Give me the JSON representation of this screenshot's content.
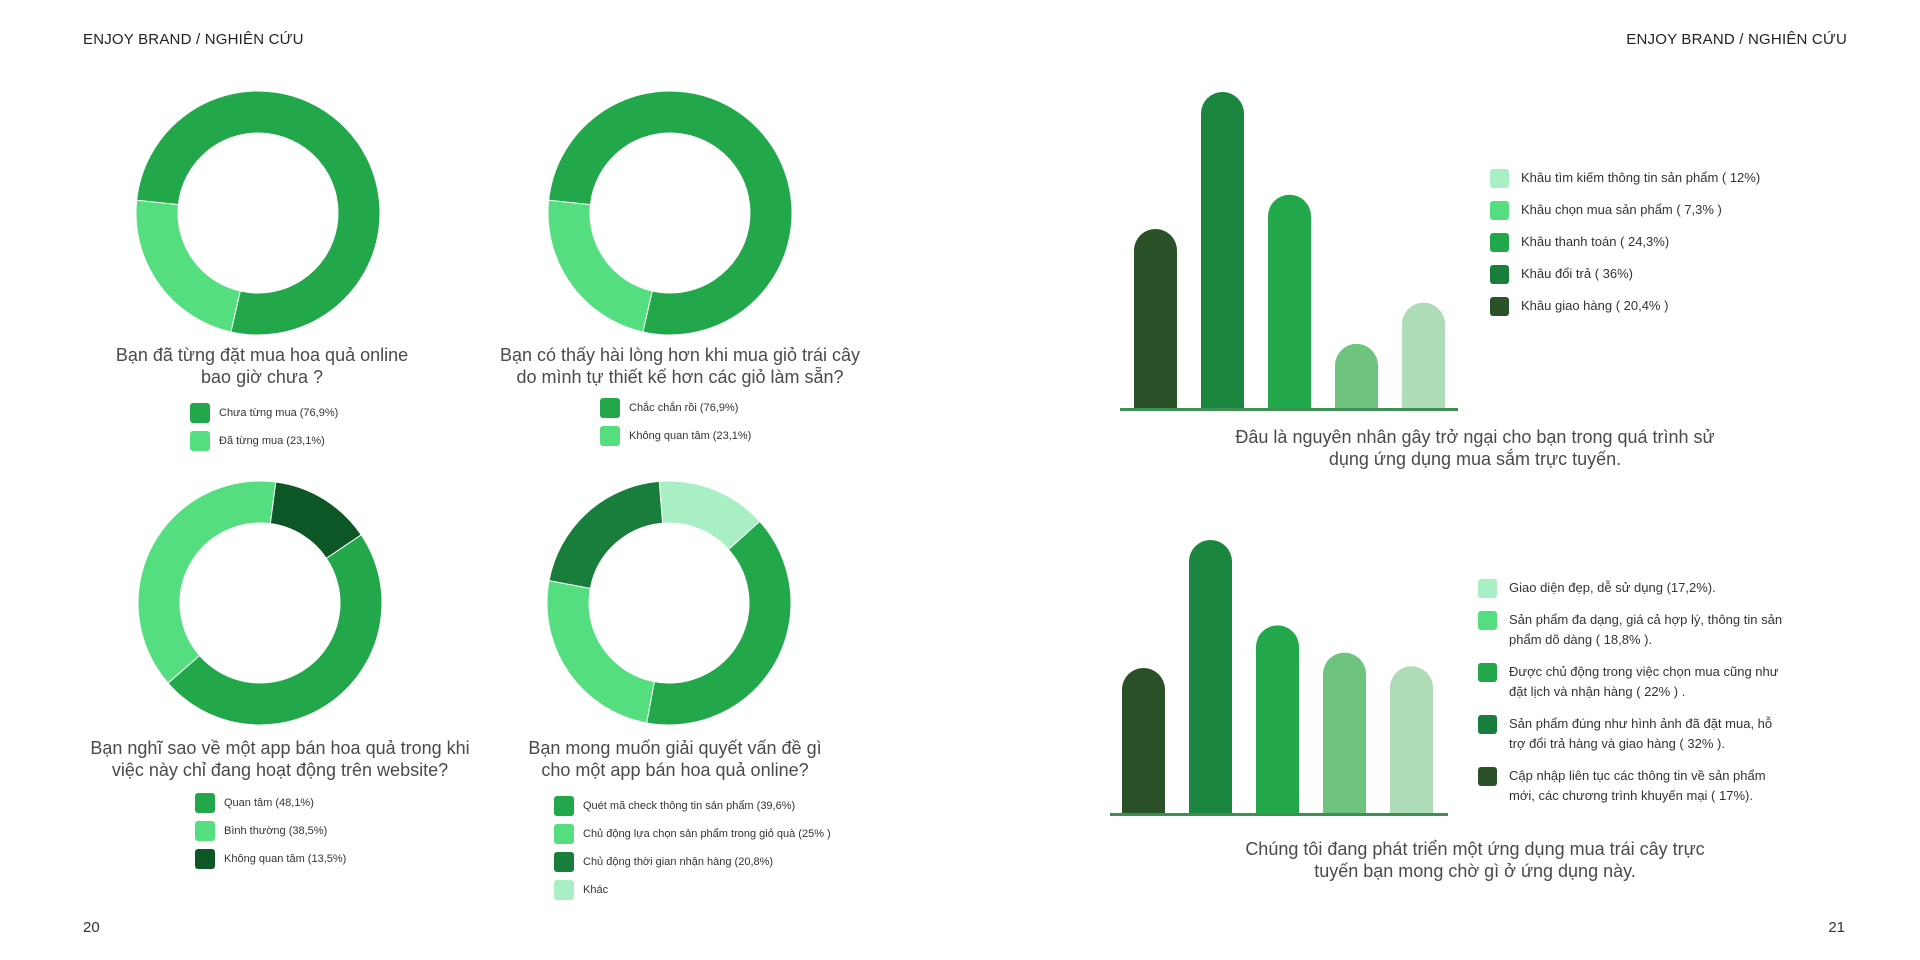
{
  "header": {
    "left_title": "ENJOY BRAND / NGHIÊN CỨU",
    "right_title": "ENJOY BRAND / NGHIÊN CỨU"
  },
  "pages": {
    "left": "20",
    "right": "21"
  },
  "chart_data": [
    {
      "type": "pie",
      "title": "Bạn đã từng đặt mua hoa quả online bao giờ chưa ?",
      "slices": [
        {
          "label": "Chưa từng mua (76,9%)",
          "value": 76.9,
          "color": "#22a84b"
        },
        {
          "label": "Đã từng mua (23,1%)",
          "value": 23.1,
          "color": "#55de80"
        }
      ]
    },
    {
      "type": "pie",
      "title": "Bạn có thấy hài lòng hơn khi mua giỏ trái cây do mình tự thiết kế hơn các giỏ làm sẵn?",
      "slices": [
        {
          "label": "Chắc chắn rồi (76,9%)",
          "value": 76.9,
          "color": "#22a84b"
        },
        {
          "label": "Không quan tâm (23,1%)",
          "value": 23.1,
          "color": "#55de80"
        }
      ]
    },
    {
      "type": "pie",
      "title": "Bạn nghĩ sao về một app bán hoa quả trong khi việc này chỉ đang hoạt động trên website?",
      "slices": [
        {
          "label": "Quan tâm (48,1%)",
          "value": 48.1,
          "color": "#22a84b"
        },
        {
          "label": "Bình thường (38,5%)",
          "value": 38.5,
          "color": "#55de80"
        },
        {
          "label": "Không quan tâm (13,5%)",
          "value": 13.5,
          "color": "#0d5626"
        }
      ]
    },
    {
      "type": "pie",
      "title": "Bạn mong muốn giải quyết vấn đề gì cho một app bán hoa quả online?",
      "slices": [
        {
          "label": "Quét mã check thông tin sản phẩm  (39,6%)",
          "value": 39.6,
          "color": "#22a84b"
        },
        {
          "label": "Chủ động lựa chọn sản phẩm trong giỏ quà (25% )",
          "value": 25,
          "color": "#55de80"
        },
        {
          "label": "Chủ động thời gian nhận hàng (20,8%)",
          "value": 20.8,
          "color": "#197e3b"
        },
        {
          "label": "Khác",
          "value": 14.6,
          "color": "#a8efc3"
        }
      ]
    },
    {
      "type": "bar",
      "title": "Đâu là nguyên nhân gây trở ngại cho bạn trong quá trình sử dụng ứng dụng mua sắm trực tuyến.",
      "categories": [
        "Khâu giao hàng ( 20,4% )",
        "Khâu đổi trả ( 36%)",
        "Khâu thanh toán ( 24,3%)",
        "Khâu chọn mua sản phẩm ( 7,3% )",
        "Khâu tìm kiếm thông tin sản phẩm ( 12%)"
      ],
      "values": [
        20.4,
        36,
        24.3,
        7.3,
        12
      ],
      "colors": [
        "#2a5128",
        "#1b8640",
        "#22a84b",
        "#6ec47f",
        "#aedcb6"
      ],
      "legend": [
        {
          "label": "Khâu tìm kiếm thông tin sản phẩm ( 12%)",
          "color": "#a8efc3"
        },
        {
          "label": "Khâu chọn mua sản phẩm ( 7,3% )",
          "color": "#55de80"
        },
        {
          "label": "Khâu thanh toán ( 24,3%)",
          "color": "#22a84b"
        },
        {
          "label": "Khâu đổi trả ( 36%)",
          "color": "#197e3b"
        },
        {
          "label": "Khâu giao hàng ( 20,4% )",
          "color": "#2a5128"
        }
      ]
    },
    {
      "type": "bar",
      "title": "Chúng tôi đang phát triển một ứng dụng mua trái cây trực tuyến bạn mong chờ gì ở ứng dụng này.",
      "categories": [
        "Cập nhập liên tục",
        "Sản phẩm đúng như hình ảnh",
        "Được chủ động",
        "Sản phẩm đa dạng",
        "Giao diện đẹp"
      ],
      "values": [
        17,
        32,
        22,
        18.8,
        17.2
      ],
      "colors": [
        "#2a5128",
        "#1b8640",
        "#22a84b",
        "#6ec47f",
        "#aedcb6"
      ],
      "legend": [
        {
          "label": "Giao diện đẹp, dễ sử dụng (17,2%).",
          "color": "#a8efc3"
        },
        {
          "label": "Sản phẩm đa dạng, giá cả hợp lý, thông tin sản phẩm dõ dàng ( 18,8% ).",
          "color": "#55de80"
        },
        {
          "label": "Được chủ động trong việc chọn mua cũng như đặt lịch và nhận hàng ( 22% ) .",
          "color": "#22a84b"
        },
        {
          "label": "Sản phẩm đúng như hình ảnh đã đặt mua, hỗ trợ đổi trả hàng và giao hàng ( 32% ).",
          "color": "#197e3b"
        },
        {
          "label": "Cập nhập liên tục các thông tin về sản phẩm mới, các chương trình khuyến mại ( 17%).",
          "color": "#2a5128"
        }
      ]
    }
  ]
}
